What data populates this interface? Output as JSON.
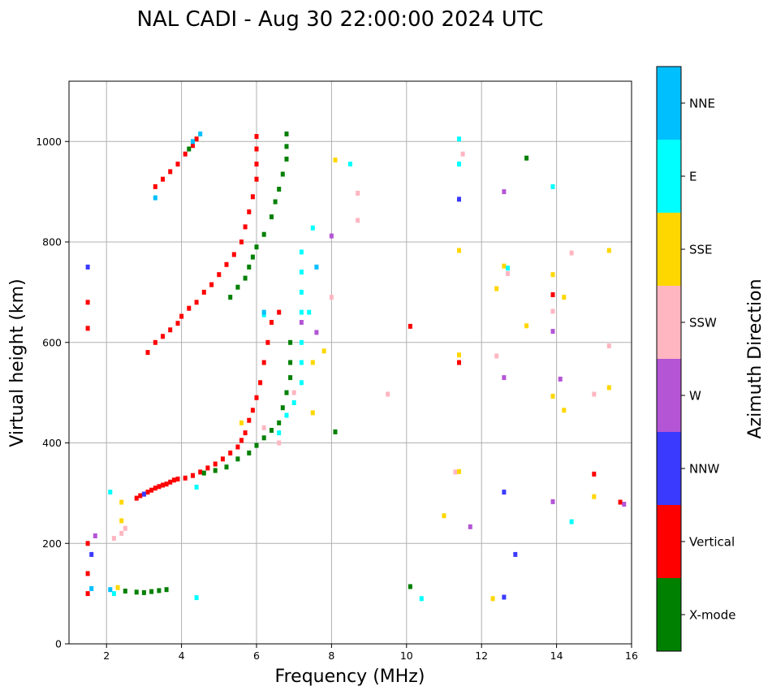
{
  "chart_data": {
    "type": "scatter",
    "title": "NAL CADI - Aug 30 22:00:00 2024 UTC",
    "xlabel": "Frequency (MHz)",
    "ylabel": "Virtual height (km)",
    "xlim": [
      1,
      16
    ],
    "ylim": [
      0,
      1120
    ],
    "xticks": [
      "2",
      "4",
      "6",
      "8",
      "10",
      "12",
      "14",
      "16"
    ],
    "yticks": [
      "0",
      "200",
      "400",
      "600",
      "800",
      "1000"
    ],
    "grid": true,
    "colorbar": {
      "label": "Azimuth Direction",
      "categories": [
        {
          "name": "X-mode",
          "color": "#008000"
        },
        {
          "name": "Vertical",
          "color": "#ff0000"
        },
        {
          "name": "NNW",
          "color": "#3a3aff"
        },
        {
          "name": "W",
          "color": "#b455d6"
        },
        {
          "name": "SSW",
          "color": "#ffb6c1"
        },
        {
          "name": "SSE",
          "color": "#ffd700"
        },
        {
          "name": "E",
          "color": "#00ffff"
        },
        {
          "name": "NNE",
          "color": "#00bfff"
        }
      ]
    },
    "series": [
      {
        "name": "Vertical",
        "color": "#ff0000",
        "points": [
          [
            1.5,
            100
          ],
          [
            1.5,
            140
          ],
          [
            1.5,
            200
          ],
          [
            1.5,
            628
          ],
          [
            1.5,
            680
          ],
          [
            2.8,
            290
          ],
          [
            2.9,
            295
          ],
          [
            3.0,
            298
          ],
          [
            3.1,
            302
          ],
          [
            3.2,
            306
          ],
          [
            3.3,
            310
          ],
          [
            3.4,
            313
          ],
          [
            3.5,
            316
          ],
          [
            3.6,
            318
          ],
          [
            3.7,
            322
          ],
          [
            3.8,
            326
          ],
          [
            3.9,
            328
          ],
          [
            4.1,
            330
          ],
          [
            4.3,
            335
          ],
          [
            4.5,
            342
          ],
          [
            4.7,
            350
          ],
          [
            4.9,
            358
          ],
          [
            5.1,
            368
          ],
          [
            5.3,
            380
          ],
          [
            5.5,
            392
          ],
          [
            5.6,
            405
          ],
          [
            5.7,
            420
          ],
          [
            5.8,
            445
          ],
          [
            5.9,
            465
          ],
          [
            6.0,
            490
          ],
          [
            6.1,
            520
          ],
          [
            6.2,
            560
          ],
          [
            6.3,
            600
          ],
          [
            6.4,
            640
          ],
          [
            6.6,
            660
          ],
          [
            3.1,
            580
          ],
          [
            3.3,
            600
          ],
          [
            3.5,
            612
          ],
          [
            3.7,
            625
          ],
          [
            3.9,
            638
          ],
          [
            4.0,
            652
          ],
          [
            4.2,
            668
          ],
          [
            4.4,
            680
          ],
          [
            4.6,
            700
          ],
          [
            4.8,
            715
          ],
          [
            5.0,
            735
          ],
          [
            5.2,
            755
          ],
          [
            5.4,
            775
          ],
          [
            5.6,
            800
          ],
          [
            5.7,
            830
          ],
          [
            5.8,
            860
          ],
          [
            5.9,
            890
          ],
          [
            6.0,
            925
          ],
          [
            6.0,
            955
          ],
          [
            6.0,
            985
          ],
          [
            6.0,
            1010
          ],
          [
            3.3,
            910
          ],
          [
            3.5,
            925
          ],
          [
            3.7,
            940
          ],
          [
            3.9,
            955
          ],
          [
            4.1,
            975
          ],
          [
            4.3,
            992
          ],
          [
            4.4,
            1005
          ],
          [
            10.1,
            632
          ],
          [
            11.4,
            560
          ],
          [
            15.0,
            338
          ],
          [
            13.9,
            695
          ],
          [
            15.7,
            282
          ]
        ]
      },
      {
        "name": "X-mode",
        "color": "#008000",
        "points": [
          [
            2.5,
            105
          ],
          [
            2.8,
            103
          ],
          [
            3.0,
            102
          ],
          [
            3.2,
            104
          ],
          [
            3.4,
            106
          ],
          [
            3.6,
            108
          ],
          [
            4.6,
            340
          ],
          [
            4.9,
            345
          ],
          [
            5.2,
            352
          ],
          [
            5.5,
            368
          ],
          [
            5.8,
            380
          ],
          [
            6.0,
            395
          ],
          [
            6.2,
            410
          ],
          [
            6.4,
            425
          ],
          [
            6.6,
            440
          ],
          [
            6.7,
            470
          ],
          [
            6.8,
            500
          ],
          [
            6.9,
            530
          ],
          [
            6.9,
            560
          ],
          [
            6.9,
            600
          ],
          [
            5.3,
            690
          ],
          [
            5.5,
            710
          ],
          [
            5.7,
            728
          ],
          [
            5.8,
            750
          ],
          [
            5.9,
            770
          ],
          [
            6.0,
            790
          ],
          [
            6.2,
            815
          ],
          [
            6.4,
            850
          ],
          [
            6.5,
            880
          ],
          [
            6.6,
            905
          ],
          [
            6.7,
            935
          ],
          [
            6.8,
            965
          ],
          [
            6.8,
            990
          ],
          [
            6.8,
            1015
          ],
          [
            4.2,
            985
          ],
          [
            8.1,
            422
          ],
          [
            10.1,
            114
          ],
          [
            13.2,
            967
          ]
        ]
      },
      {
        "name": "NNW",
        "color": "#3a3aff",
        "points": [
          [
            1.5,
            750
          ],
          [
            1.6,
            178
          ],
          [
            3.0,
            298
          ],
          [
            11.4,
            885
          ],
          [
            12.6,
            302
          ],
          [
            12.9,
            178
          ],
          [
            12.6,
            93
          ]
        ]
      },
      {
        "name": "W",
        "color": "#b455d6",
        "points": [
          [
            1.7,
            215
          ],
          [
            7.2,
            640
          ],
          [
            7.6,
            620
          ],
          [
            12.6,
            900
          ],
          [
            12.6,
            530
          ],
          [
            13.9,
            622
          ],
          [
            14.1,
            527
          ],
          [
            13.9,
            283
          ],
          [
            11.7,
            233
          ],
          [
            8.0,
            812
          ],
          [
            15.8,
            278
          ]
        ]
      },
      {
        "name": "SSW",
        "color": "#ffb6c1",
        "points": [
          [
            2.2,
            210
          ],
          [
            2.4,
            220
          ],
          [
            2.5,
            230
          ],
          [
            6.2,
            430
          ],
          [
            7.0,
            500
          ],
          [
            8.0,
            690
          ],
          [
            8.7,
            897
          ],
          [
            8.7,
            843
          ],
          [
            9.5,
            497
          ],
          [
            11.3,
            342
          ],
          [
            11.5,
            975
          ],
          [
            12.4,
            573
          ],
          [
            12.7,
            737
          ],
          [
            13.9,
            662
          ],
          [
            14.4,
            778
          ],
          [
            15.0,
            497
          ],
          [
            15.4,
            593
          ],
          [
            6.6,
            400
          ]
        ]
      },
      {
        "name": "SSE",
        "color": "#ffd700",
        "points": [
          [
            2.3,
            112
          ],
          [
            2.4,
            245
          ],
          [
            2.4,
            282
          ],
          [
            5.6,
            440
          ],
          [
            7.5,
            460
          ],
          [
            7.5,
            560
          ],
          [
            8.1,
            963
          ],
          [
            7.8,
            583
          ],
          [
            11.0,
            255
          ],
          [
            11.4,
            343
          ],
          [
            11.4,
            575
          ],
          [
            11.4,
            783
          ],
          [
            12.4,
            707
          ],
          [
            12.6,
            752
          ],
          [
            13.2,
            633
          ],
          [
            13.9,
            493
          ],
          [
            13.9,
            735
          ],
          [
            14.2,
            690
          ],
          [
            14.2,
            465
          ],
          [
            15.0,
            293
          ],
          [
            15.4,
            510
          ],
          [
            15.4,
            783
          ],
          [
            12.3,
            90
          ]
        ]
      },
      {
        "name": "E",
        "color": "#00ffff",
        "points": [
          [
            2.1,
            302
          ],
          [
            2.2,
            100
          ],
          [
            4.4,
            92
          ],
          [
            4.4,
            312
          ],
          [
            6.6,
            420
          ],
          [
            6.8,
            455
          ],
          [
            7.0,
            480
          ],
          [
            7.2,
            520
          ],
          [
            7.2,
            560
          ],
          [
            7.2,
            600
          ],
          [
            7.2,
            660
          ],
          [
            7.2,
            700
          ],
          [
            7.2,
            740
          ],
          [
            7.2,
            780
          ],
          [
            7.4,
            660
          ],
          [
            6.2,
            655
          ],
          [
            7.5,
            828
          ],
          [
            8.5,
            955
          ],
          [
            10.4,
            90
          ],
          [
            11.4,
            1005
          ],
          [
            11.4,
            955
          ],
          [
            12.7,
            748
          ],
          [
            13.9,
            910
          ],
          [
            14.4,
            243
          ]
        ]
      },
      {
        "name": "NNE",
        "color": "#00bfff",
        "points": [
          [
            1.6,
            110
          ],
          [
            2.1,
            108
          ],
          [
            3.3,
            888
          ],
          [
            4.3,
            1000
          ],
          [
            4.5,
            1015
          ],
          [
            6.2,
            660
          ],
          [
            7.6,
            750
          ]
        ]
      }
    ]
  }
}
